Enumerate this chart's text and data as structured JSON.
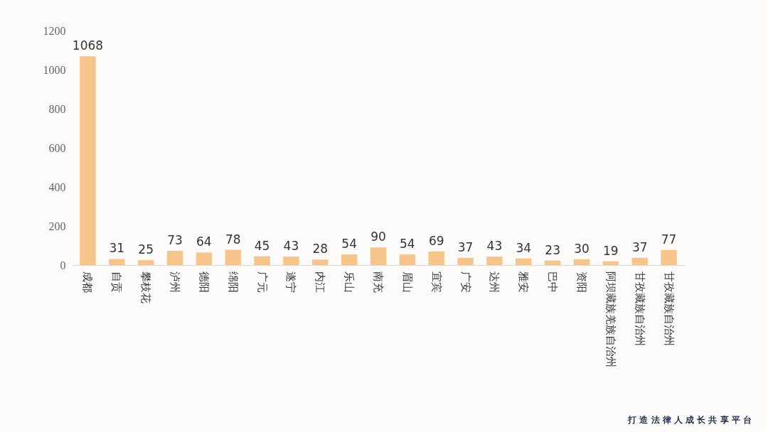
{
  "chart_data": {
    "type": "bar",
    "categories": [
      "成都",
      "自贡",
      "攀枝花",
      "泸州",
      "德阳",
      "绵阳",
      "广元",
      "遂宁",
      "内江",
      "乐山",
      "南充",
      "眉山",
      "宜宾",
      "广安",
      "达州",
      "雅安",
      "巴中",
      "资阳",
      "阿坝藏族羌族自治州",
      "甘孜藏族自治州",
      "甘孜藏族自治州"
    ],
    "values": [
      1068,
      31,
      25,
      73,
      64,
      78,
      45,
      43,
      28,
      54,
      90,
      54,
      69,
      37,
      43,
      34,
      23,
      30,
      19,
      37,
      77
    ],
    "color": "#f5c58b",
    "ylim": [
      0,
      1200
    ],
    "yticks": [
      0,
      200,
      400,
      600,
      800,
      1000,
      1200
    ],
    "grid": false,
    "data_labels": true,
    "annotations": [
      "打 造 法 律 人 成 长 共 享 平 台"
    ]
  }
}
